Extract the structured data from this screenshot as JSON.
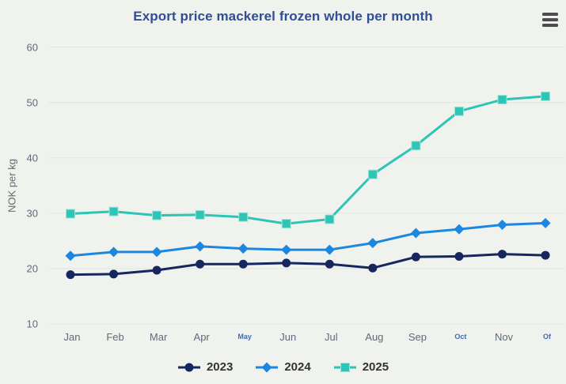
{
  "title": "Export price mackerel frozen whole per month",
  "menu": {
    "icon": "hamburger-menu-icon"
  },
  "colors": {
    "background": "#f0f2ee",
    "title": "#2e4f97",
    "axis_text": "#5f6b76",
    "small_label": "#3f6cb1",
    "grid": "#e2e5e1",
    "legend_text": "#333333",
    "menu_icon": "#4d4d4d",
    "square_marker_edge": "#9fe4db"
  },
  "chart_data": {
    "type": "line",
    "categories": [
      "Jan",
      "Feb",
      "Mar",
      "Apr",
      "May",
      "Jun",
      "Jul",
      "Aug",
      "Sep",
      "Oct",
      "Nov",
      "Of"
    ],
    "small_blue_labels": [
      "May",
      "Oct",
      "Of"
    ],
    "title": "Export price mackerel frozen whole per month",
    "xlabel": "",
    "ylabel": "NOK per kg",
    "ylim": [
      10,
      60
    ],
    "yticks": [
      10,
      20,
      30,
      40,
      50,
      60
    ],
    "grid": true,
    "legend_position": "bottom",
    "series": [
      {
        "name": "2023",
        "marker": "circle",
        "color": "#16265e",
        "values": [
          18.9,
          19.0,
          19.7,
          20.8,
          20.8,
          21.0,
          20.8,
          20.1,
          22.1,
          22.2,
          22.6,
          22.4
        ]
      },
      {
        "name": "2024",
        "marker": "diamond",
        "color": "#1b87e0",
        "values": [
          22.3,
          23.0,
          23.0,
          24.0,
          23.6,
          23.4,
          23.4,
          24.6,
          26.4,
          27.1,
          27.9,
          28.2
        ]
      },
      {
        "name": "2025",
        "marker": "square",
        "color": "#2ec4b6",
        "values": [
          29.9,
          30.3,
          29.6,
          29.7,
          29.3,
          28.1,
          28.9,
          37.0,
          42.2,
          48.4,
          50.5,
          51.1
        ]
      }
    ]
  }
}
